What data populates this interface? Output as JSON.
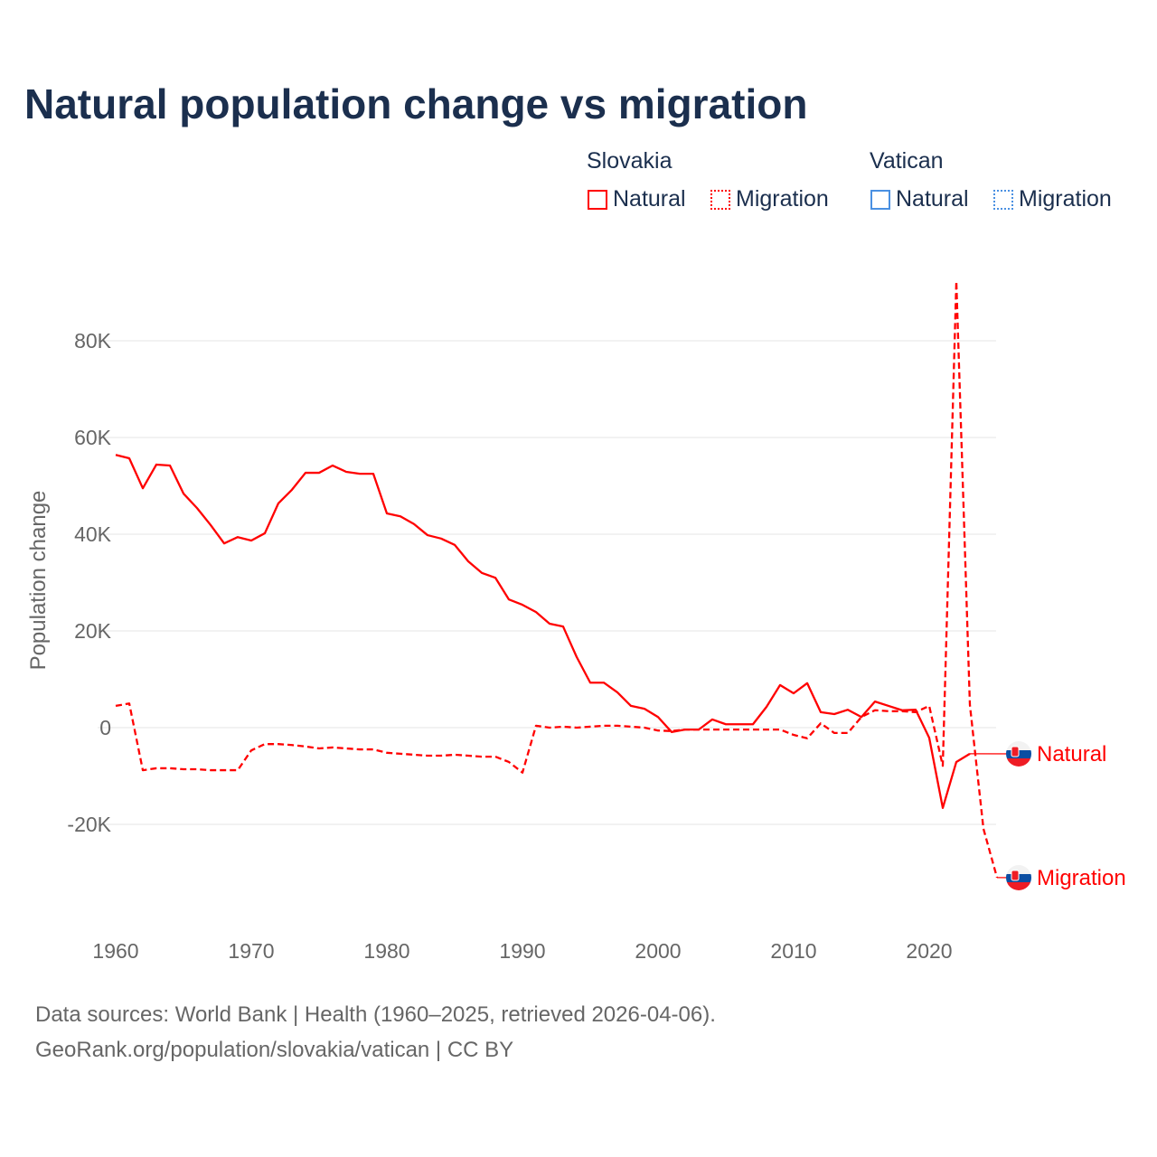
{
  "chart_data": {
    "type": "line",
    "title": "Natural population change vs migration",
    "ylabel": "Population change",
    "xlabel": "",
    "xlim": [
      1960,
      2025
    ],
    "ylim": [
      -37000,
      97000
    ],
    "x_ticks": [
      "1960",
      "1970",
      "1980",
      "1990",
      "2000",
      "2010",
      "2020"
    ],
    "y_ticks": [
      {
        "value": 80000,
        "label": "80K"
      },
      {
        "value": 60000,
        "label": "60K"
      },
      {
        "value": 40000,
        "label": "40K"
      },
      {
        "value": 20000,
        "label": "20K"
      },
      {
        "value": 0,
        "label": "0"
      },
      {
        "value": -20000,
        "label": "-20K"
      }
    ],
    "grid": true,
    "legend": {
      "position": "top-right",
      "groups": [
        {
          "name": "Slovakia",
          "items": [
            "Natural",
            "Migration"
          ]
        },
        {
          "name": "Vatican",
          "items": [
            "Natural",
            "Migration"
          ]
        }
      ]
    },
    "series": [
      {
        "name": "Natural",
        "country": "Slovakia",
        "style": "solid",
        "color": "#ff0000",
        "x_start": 1960,
        "values": [
          56400,
          55700,
          49500,
          54400,
          54200,
          48400,
          45400,
          41900,
          38100,
          39400,
          38700,
          40200,
          46400,
          49200,
          52700,
          52700,
          54200,
          52900,
          52500,
          52500,
          44300,
          43700,
          42100,
          39800,
          39100,
          37800,
          34400,
          32000,
          31000,
          26500,
          25400,
          23900,
          21500,
          20900,
          14600,
          9300,
          9300,
          7300,
          4500,
          3900,
          2200,
          -900,
          -400,
          -400,
          1700,
          700,
          700,
          700,
          4300,
          8800,
          7100,
          9200,
          3200,
          2800,
          3700,
          2200,
          5400,
          4500,
          3600,
          3700,
          -2100,
          -16600,
          -7100,
          -5400
        ]
      },
      {
        "name": "Migration",
        "country": "Slovakia",
        "style": "dashed",
        "color": "#ff0000",
        "x_start": 1960,
        "values": [
          4500,
          5000,
          -8800,
          -8400,
          -8400,
          -8600,
          -8600,
          -8800,
          -8800,
          -8800,
          -4700,
          -3400,
          -3400,
          -3600,
          -3900,
          -4300,
          -4100,
          -4300,
          -4500,
          -4500,
          -5200,
          -5400,
          -5600,
          -5800,
          -5800,
          -5600,
          -5800,
          -6000,
          -6000,
          -7100,
          -9300,
          400,
          0,
          200,
          0,
          200,
          400,
          400,
          200,
          0,
          -600,
          -700,
          -400,
          -400,
          -400,
          -400,
          -400,
          -400,
          -400,
          -400,
          -1500,
          -2200,
          900,
          -1100,
          -1100,
          2200,
          3600,
          3400,
          3400,
          3200,
          4500,
          -7900,
          92300,
          4700,
          -20900,
          -31000
        ]
      }
    ],
    "end_labels": [
      "Natural",
      "Migration"
    ]
  },
  "colors": {
    "slovakia": "#ff0000",
    "vatican": "#4a90e2"
  },
  "source": {
    "line1": "Data sources: World Bank | Health (1960–2025, retrieved 2026-04-06).",
    "line2": "GeoRank.org/population/slovakia/vatican | CC BY"
  }
}
